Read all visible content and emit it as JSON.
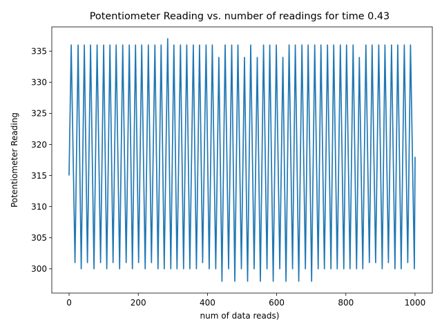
{
  "chart_data": {
    "type": "line",
    "title": "Potentiometer Reading vs. number of readings for time 0.43",
    "xlabel": "num of data reads)",
    "ylabel": "Potentiometer Reading",
    "xlim": [
      -50,
      1050
    ],
    "ylim": [
      296.1,
      338.9
    ],
    "xticks": [
      0,
      200,
      400,
      600,
      800,
      1000
    ],
    "yticks": [
      300,
      305,
      310,
      315,
      320,
      325,
      330,
      335
    ],
    "grid": false,
    "legend": "none",
    "series": [
      {
        "color": "#1f77b4",
        "peaks": [
          [
            6,
            336
          ],
          [
            26,
            336
          ],
          [
            44,
            336
          ],
          [
            62,
            336
          ],
          [
            81,
            336
          ],
          [
            100,
            336
          ],
          [
            118,
            336
          ],
          [
            136,
            336
          ],
          [
            155,
            336
          ],
          [
            174,
            336
          ],
          [
            192,
            336
          ],
          [
            210,
            336
          ],
          [
            229,
            336
          ],
          [
            248,
            336
          ],
          [
            266,
            336
          ],
          [
            285,
            337
          ],
          [
            303,
            336
          ],
          [
            322,
            336
          ],
          [
            340,
            336
          ],
          [
            359,
            336
          ],
          [
            377,
            336
          ],
          [
            396,
            336
          ],
          [
            414,
            336
          ],
          [
            433,
            334
          ],
          [
            451,
            336
          ],
          [
            470,
            336
          ],
          [
            488,
            336
          ],
          [
            507,
            334
          ],
          [
            525,
            336
          ],
          [
            544,
            334
          ],
          [
            562,
            336
          ],
          [
            580,
            336
          ],
          [
            599,
            336
          ],
          [
            618,
            334
          ],
          [
            636,
            336
          ],
          [
            654,
            336
          ],
          [
            673,
            336
          ],
          [
            691,
            336
          ],
          [
            710,
            336
          ],
          [
            728,
            336
          ],
          [
            747,
            336
          ],
          [
            765,
            336
          ],
          [
            784,
            336
          ],
          [
            802,
            336
          ],
          [
            821,
            336
          ],
          [
            839,
            334
          ],
          [
            858,
            336
          ],
          [
            876,
            336
          ],
          [
            895,
            336
          ],
          [
            913,
            336
          ],
          [
            932,
            336
          ],
          [
            950,
            336
          ],
          [
            969,
            336
          ],
          [
            987,
            336
          ]
        ],
        "troughs": [
          [
            17,
            301
          ],
          [
            35,
            300
          ],
          [
            53,
            301
          ],
          [
            72,
            300
          ],
          [
            91,
            301
          ],
          [
            109,
            300
          ],
          [
            127,
            301
          ],
          [
            146,
            300
          ],
          [
            165,
            301
          ],
          [
            183,
            300
          ],
          [
            201,
            301
          ],
          [
            220,
            300
          ],
          [
            238,
            301
          ],
          [
            257,
            300
          ],
          [
            275,
            300
          ],
          [
            294,
            300
          ],
          [
            312,
            300
          ],
          [
            331,
            300
          ],
          [
            349,
            300
          ],
          [
            368,
            300
          ],
          [
            386,
            301
          ],
          [
            405,
            300
          ],
          [
            424,
            300
          ],
          [
            442,
            298
          ],
          [
            461,
            300
          ],
          [
            479,
            298
          ],
          [
            498,
            300
          ],
          [
            516,
            298
          ],
          [
            535,
            300
          ],
          [
            553,
            298
          ],
          [
            572,
            300
          ],
          [
            590,
            298
          ],
          [
            609,
            300
          ],
          [
            627,
            298
          ],
          [
            646,
            300
          ],
          [
            664,
            298
          ],
          [
            683,
            300
          ],
          [
            701,
            298
          ],
          [
            720,
            300
          ],
          [
            738,
            300
          ],
          [
            757,
            300
          ],
          [
            775,
            300
          ],
          [
            794,
            300
          ],
          [
            812,
            300
          ],
          [
            831,
            300
          ],
          [
            849,
            300
          ],
          [
            868,
            301
          ],
          [
            886,
            301
          ],
          [
            905,
            300
          ],
          [
            923,
            301
          ],
          [
            942,
            300
          ],
          [
            960,
            300
          ],
          [
            979,
            301
          ]
        ],
        "start": [
          0,
          315
        ],
        "end": [
          998,
          300
        ],
        "final": [
          1000,
          318
        ]
      }
    ]
  }
}
